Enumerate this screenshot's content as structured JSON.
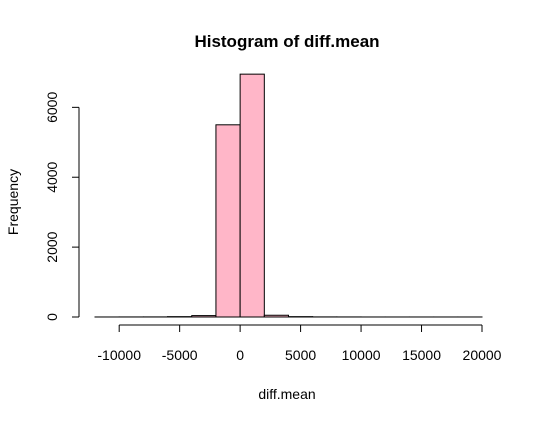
{
  "chart_data": {
    "type": "bar",
    "title": "Histogram of diff.mean",
    "xlabel": "diff.mean",
    "ylabel": "Frequency",
    "xlim": [
      -12000,
      20000
    ],
    "ylim": [
      0,
      7000
    ],
    "bin_width": 2000,
    "bins": [
      {
        "x0": -12000,
        "x1": -10000,
        "count": 1
      },
      {
        "x0": -10000,
        "x1": -8000,
        "count": 2
      },
      {
        "x0": -8000,
        "x1": -6000,
        "count": 3
      },
      {
        "x0": -6000,
        "x1": -4000,
        "count": 10
      },
      {
        "x0": -4000,
        "x1": -2000,
        "count": 40
      },
      {
        "x0": -2000,
        "x1": 0,
        "count": 5500
      },
      {
        "x0": 0,
        "x1": 2000,
        "count": 6950
      },
      {
        "x0": 2000,
        "x1": 4000,
        "count": 50
      },
      {
        "x0": 4000,
        "x1": 6000,
        "count": 10
      },
      {
        "x0": 6000,
        "x1": 8000,
        "count": 3
      },
      {
        "x0": 8000,
        "x1": 10000,
        "count": 2
      },
      {
        "x0": 10000,
        "x1": 12000,
        "count": 1
      },
      {
        "x0": 12000,
        "x1": 14000,
        "count": 1
      },
      {
        "x0": 14000,
        "x1": 16000,
        "count": 1
      },
      {
        "x0": 16000,
        "x1": 18000,
        "count": 1
      },
      {
        "x0": 18000,
        "x1": 20000,
        "count": 1
      }
    ],
    "x_ticks": [
      -10000,
      -5000,
      0,
      5000,
      10000,
      15000,
      20000
    ],
    "x_tick_labels": [
      "-10000",
      "-5000",
      "0",
      "5000",
      "10000",
      "15000",
      "20000"
    ],
    "y_ticks": [
      0,
      2000,
      4000,
      6000
    ],
    "y_tick_labels": [
      "0",
      "2000",
      "4000",
      "6000"
    ],
    "bar_color": "#ffb6c8",
    "border_color": "#000000",
    "grid": false,
    "legend": "none"
  }
}
